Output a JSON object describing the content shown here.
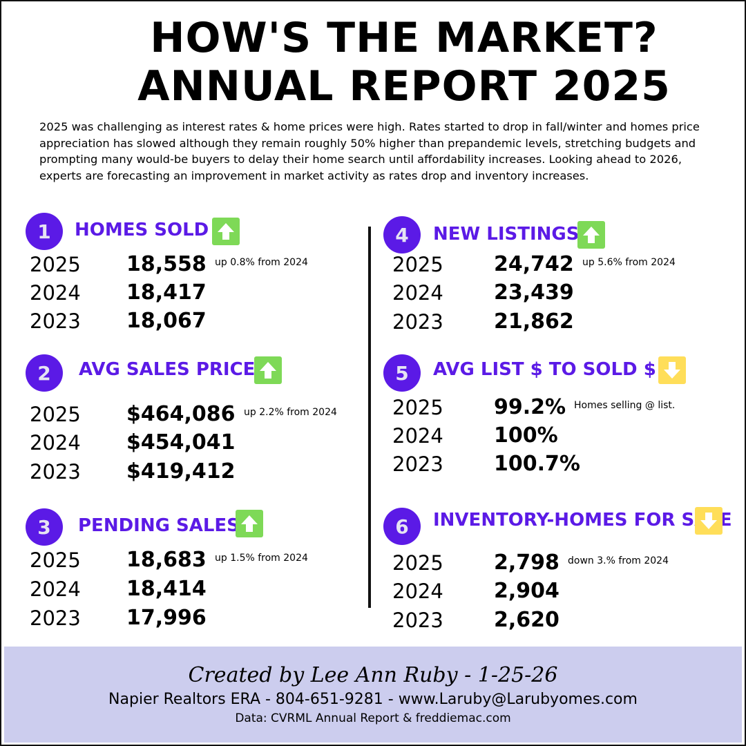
{
  "title": {
    "line1": "HOW'S THE MARKET?",
    "line2": "ANNUAL REPORT 2025"
  },
  "intro": "2025 was challenging as interest rates & home prices were high. Rates started to drop in fall/winter and homes price appreciation has slowed although they remain roughly 50% higher than prepandemic levels, stretching budgets and prompting many would-be buyers to delay their home search until affordability increases. Looking ahead to 2026, experts are forecasting an improvement in market activity as rates drop and inventory increases.",
  "colors": {
    "accent": "#5b1ae6",
    "up": "#7ed957",
    "down": "#ffde59",
    "footer": "#cccdee"
  },
  "sections": [
    {
      "num": "1",
      "title": "HOMES SOLD",
      "trend": "up",
      "rows": [
        {
          "year": "2025",
          "value": "18,558",
          "note": "up 0.8% from 2024"
        },
        {
          "year": "2024",
          "value": "18,417"
        },
        {
          "year": "2023",
          "value": "18,067"
        }
      ]
    },
    {
      "num": "2",
      "title": "AVG SALES PRICE",
      "trend": "up",
      "rows": [
        {
          "year": "2025",
          "value": "$464,086",
          "note": "up 2.2% from 2024"
        },
        {
          "year": "2024",
          "value": "$454,041"
        },
        {
          "year": "2023",
          "value": "$419,412"
        }
      ]
    },
    {
      "num": "3",
      "title": "PENDING SALES",
      "trend": "up",
      "rows": [
        {
          "year": "2025",
          "value": "18,683",
          "note": "up 1.5% from 2024"
        },
        {
          "year": "2024",
          "value": "18,414"
        },
        {
          "year": "2023",
          "value": "17,996"
        }
      ]
    },
    {
      "num": "4",
      "title": "NEW LISTINGS",
      "trend": "up",
      "rows": [
        {
          "year": "2025",
          "value": "24,742",
          "note": "up 5.6% from 2024"
        },
        {
          "year": "2024",
          "value": "23,439"
        },
        {
          "year": "2023",
          "value": "21,862"
        }
      ]
    },
    {
      "num": "5",
      "title": "AVG LIST $ TO SOLD $",
      "trend": "down",
      "rows": [
        {
          "year": "2025",
          "value": "99.2%",
          "note": "Homes selling @ list."
        },
        {
          "year": "2024",
          "value": "100%"
        },
        {
          "year": "2023",
          "value": "100.7%"
        }
      ]
    },
    {
      "num": "6",
      "title": "INVENTORY-HOMES FOR SALE",
      "trend": "down",
      "rows": [
        {
          "year": "2025",
          "value": "2,798",
          "note": "down 3.% from 2024"
        },
        {
          "year": "2024",
          "value": "2,904"
        },
        {
          "year": "2023",
          "value": "2,620"
        }
      ]
    }
  ],
  "footer": {
    "signature": "Created by Lee Ann Ruby - 1-25-26",
    "contact": "Napier Realtors ERA - 804-651-9281 - www.Laruby@Larubyomes.com",
    "source": "Data: CVRML Annual Report & freddiemac.com"
  }
}
